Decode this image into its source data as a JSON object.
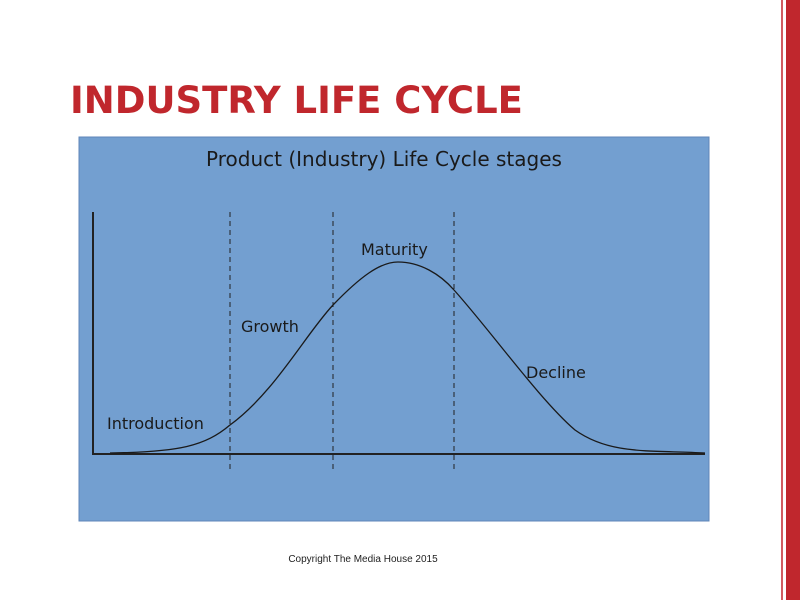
{
  "header": {
    "title": "INDUSTRY LIFE CYCLE"
  },
  "diagram": {
    "title": "Product (Industry) Life Cycle stages",
    "stages": [
      "Introduction",
      "Growth",
      "Maturity",
      "Decline"
    ]
  },
  "footer": {
    "copyright": "Copyright The Media House 2015"
  }
}
